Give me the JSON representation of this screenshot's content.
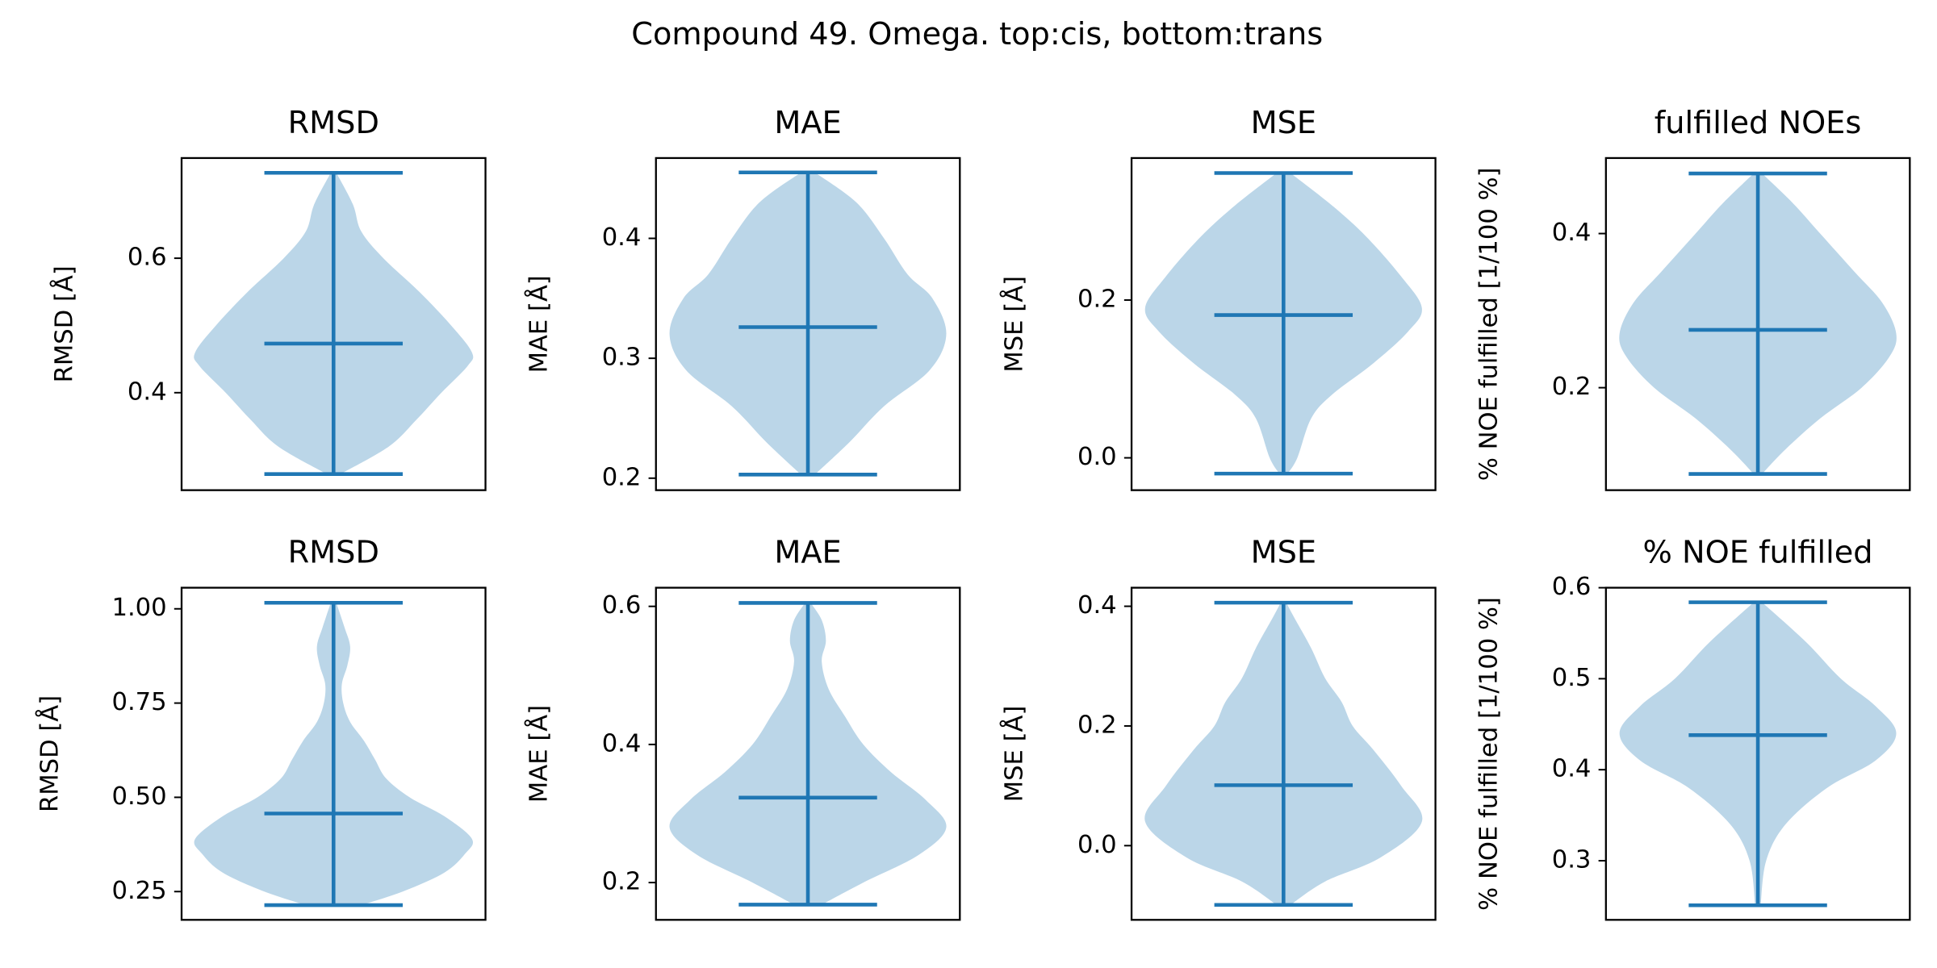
{
  "title": "Compound 49. Omega. top:cis, bottom:trans",
  "chart_data": [
    {
      "type": "violin",
      "title": "RMSD",
      "ylabel": "RMSD [Å]",
      "color": "#1f77b4",
      "ylim": [
        0.255,
        0.749
      ],
      "yticks": [
        0.4,
        0.6
      ],
      "min": 0.279,
      "max": 0.727,
      "mean": 0.473,
      "violin": {
        "y": [
          0.279,
          0.32,
          0.36,
          0.4,
          0.44,
          0.46,
          0.5,
          0.55,
          0.6,
          0.64,
          0.68,
          0.727
        ],
        "width": [
          0.05,
          0.4,
          0.6,
          0.78,
          0.97,
          1.0,
          0.85,
          0.62,
          0.36,
          0.2,
          0.14,
          0.02
        ]
      }
    },
    {
      "type": "violin",
      "title": "MAE",
      "ylabel": "MAE [Å]",
      "color": "#1f77b4",
      "ylim": [
        0.19,
        0.467
      ],
      "yticks": [
        0.2,
        0.3,
        0.4
      ],
      "min": 0.203,
      "max": 0.455,
      "mean": 0.326,
      "violin": {
        "y": [
          0.203,
          0.23,
          0.26,
          0.29,
          0.32,
          0.35,
          0.37,
          0.4,
          0.43,
          0.455
        ],
        "width": [
          0.05,
          0.3,
          0.55,
          0.88,
          1.0,
          0.9,
          0.72,
          0.55,
          0.35,
          0.05
        ]
      }
    },
    {
      "type": "violin",
      "title": "MSE",
      "ylabel": "MSE [Å]",
      "color": "#1f77b4",
      "ylim": [
        -0.041,
        0.38
      ],
      "yticks": [
        {
          "value": 0,
          "label": "0.0"
        },
        0.2
      ],
      "min": -0.02,
      "max": 0.361,
      "mean": 0.181,
      "violin": {
        "y": [
          -0.02,
          0.0,
          0.05,
          0.08,
          0.12,
          0.16,
          0.19,
          0.23,
          0.28,
          0.32,
          0.361
        ],
        "width": [
          0.03,
          0.1,
          0.2,
          0.35,
          0.65,
          0.9,
          1.0,
          0.85,
          0.6,
          0.35,
          0.05
        ]
      }
    },
    {
      "type": "violin",
      "title": "fulfilled NOEs",
      "ylabel": "% NOE fulfilled [1/100 %]",
      "color": "#1f77b4",
      "ylim": [
        0.067,
        0.498
      ],
      "yticks": [
        0.2,
        0.4
      ],
      "min": 0.088,
      "max": 0.478,
      "mean": 0.275,
      "violin": {
        "y": [
          0.088,
          0.12,
          0.16,
          0.2,
          0.24,
          0.27,
          0.31,
          0.35,
          0.4,
          0.44,
          0.478
        ],
        "width": [
          0.03,
          0.2,
          0.45,
          0.75,
          0.95,
          1.0,
          0.9,
          0.7,
          0.45,
          0.25,
          0.03
        ]
      }
    },
    {
      "type": "violin",
      "title": "RMSD",
      "ylabel": "RMSD [Å]",
      "color": "#1f77b4",
      "ylim": [
        0.175,
        1.056
      ],
      "yticks": [
        {
          "value": 0.25,
          "label": "0.25"
        },
        {
          "value": 0.5,
          "label": "0.50"
        },
        {
          "value": 0.75,
          "label": "0.75"
        },
        {
          "value": 1,
          "label": "1.00"
        }
      ],
      "min": 0.214,
      "max": 1.016,
      "mean": 0.457,
      "violin": {
        "y": [
          0.214,
          0.25,
          0.3,
          0.35,
          0.39,
          0.45,
          0.5,
          0.55,
          0.6,
          0.65,
          0.7,
          0.75,
          0.8,
          0.85,
          0.9,
          0.95,
          1.016
        ],
        "width": [
          0.2,
          0.5,
          0.8,
          0.95,
          1.0,
          0.8,
          0.55,
          0.38,
          0.3,
          0.22,
          0.12,
          0.07,
          0.06,
          0.1,
          0.12,
          0.08,
          0.02
        ]
      }
    },
    {
      "type": "violin",
      "title": "MAE",
      "ylabel": "MAE [Å]",
      "color": "#1f77b4",
      "ylim": [
        0.146,
        0.627
      ],
      "yticks": [
        0.2,
        0.4,
        0.6
      ],
      "min": 0.168,
      "max": 0.605,
      "mean": 0.323,
      "violin": {
        "y": [
          0.168,
          0.2,
          0.24,
          0.28,
          0.32,
          0.36,
          0.4,
          0.44,
          0.48,
          0.52,
          0.55,
          0.58,
          0.605
        ],
        "width": [
          0.1,
          0.4,
          0.8,
          1.0,
          0.85,
          0.6,
          0.4,
          0.27,
          0.15,
          0.1,
          0.13,
          0.1,
          0.02
        ]
      }
    },
    {
      "type": "violin",
      "title": "MSE",
      "ylabel": "MSE [Å]",
      "color": "#1f77b4",
      "ylim": [
        -0.124,
        0.431
      ],
      "yticks": [
        {
          "value": 0,
          "label": "0.0"
        },
        0.2,
        0.4
      ],
      "min": -0.099,
      "max": 0.406,
      "mean": 0.101,
      "violin": {
        "y": [
          -0.099,
          -0.06,
          -0.02,
          0.04,
          0.1,
          0.16,
          0.2,
          0.24,
          0.28,
          0.33,
          0.38,
          0.406
        ],
        "width": [
          0.05,
          0.3,
          0.7,
          1.0,
          0.85,
          0.65,
          0.5,
          0.42,
          0.3,
          0.2,
          0.08,
          0.02
        ]
      }
    },
    {
      "type": "violin",
      "title": "% NOE fulfilled",
      "ylabel": "% NOE fulfilled [1/100 %]",
      "color": "#1f77b4",
      "ylim": [
        0.235,
        0.6
      ],
      "yticks": [
        0.3,
        0.4,
        0.5,
        0.6
      ],
      "min": 0.251,
      "max": 0.584,
      "mean": 0.438,
      "violin": {
        "y": [
          0.251,
          0.3,
          0.34,
          0.38,
          0.41,
          0.44,
          0.47,
          0.5,
          0.54,
          0.584
        ],
        "width": [
          0.02,
          0.06,
          0.2,
          0.5,
          0.85,
          1.0,
          0.85,
          0.6,
          0.35,
          0.03
        ]
      }
    }
  ]
}
